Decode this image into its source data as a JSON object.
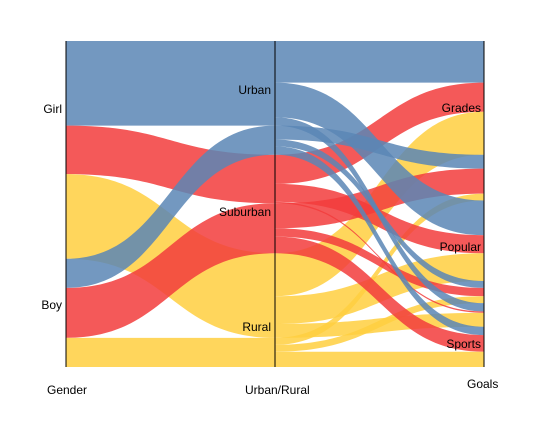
{
  "chart_data": {
    "type": "parallel-sets",
    "axes": [
      {
        "label": "Gender",
        "categories": [
          "Girl",
          "Boy"
        ]
      },
      {
        "label": "Urban/Rural",
        "categories": [
          "Urban",
          "Suburban",
          "Rural"
        ]
      },
      {
        "label": "Goals",
        "categories": [
          "Grades",
          "Popular",
          "Sports"
        ]
      }
    ],
    "colors": {
      "Urban": "#5b86b5",
      "Suburban": "#f23c3c",
      "Rural": "#ffcf40"
    },
    "flows": [
      {
        "gender": "Girl",
        "area": "Urban",
        "goal": "Grades",
        "value": 30
      },
      {
        "gender": "Girl",
        "area": "Urban",
        "goal": "Popular",
        "value": 25
      },
      {
        "gender": "Girl",
        "area": "Urban",
        "goal": "Sports",
        "value": 6
      },
      {
        "gender": "Girl",
        "area": "Suburban",
        "goal": "Grades",
        "value": 21
      },
      {
        "gender": "Girl",
        "area": "Suburban",
        "goal": "Popular",
        "value": 13
      },
      {
        "gender": "Girl",
        "area": "Suburban",
        "goal": "Sports",
        "value": 1
      },
      {
        "gender": "Girl",
        "area": "Rural",
        "goal": "Grades",
        "value": 31
      },
      {
        "gender": "Girl",
        "area": "Rural",
        "goal": "Popular",
        "value": 20
      },
      {
        "gender": "Girl",
        "area": "Rural",
        "goal": "Sports",
        "value": 10
      },
      {
        "gender": "Boy",
        "area": "Urban",
        "goal": "Grades",
        "value": 10
      },
      {
        "gender": "Boy",
        "area": "Urban",
        "goal": "Popular",
        "value": 5
      },
      {
        "gender": "Boy",
        "area": "Urban",
        "goal": "Sports",
        "value": 6
      },
      {
        "gender": "Boy",
        "area": "Suburban",
        "goal": "Grades",
        "value": 18
      },
      {
        "gender": "Boy",
        "area": "Suburban",
        "goal": "Popular",
        "value": 6
      },
      {
        "gender": "Boy",
        "area": "Suburban",
        "goal": "Sports",
        "value": 12
      },
      {
        "gender": "Boy",
        "area": "Rural",
        "goal": "Grades",
        "value": 5
      },
      {
        "gender": "Boy",
        "area": "Rural",
        "goal": "Popular",
        "value": 5
      },
      {
        "gender": "Boy",
        "area": "Rural",
        "goal": "Sports",
        "value": 11
      }
    ]
  }
}
